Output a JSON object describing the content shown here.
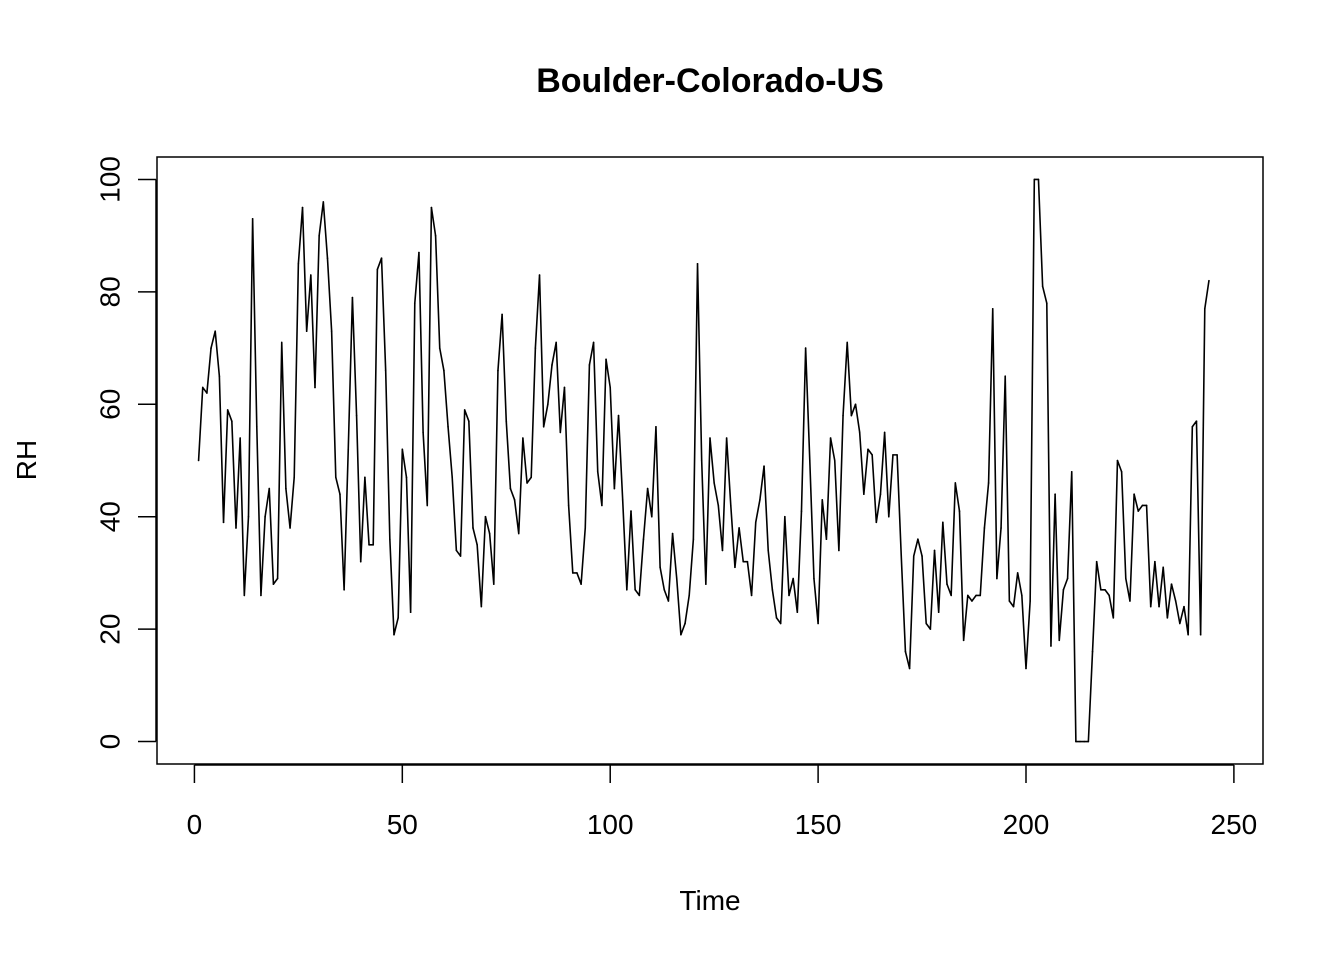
{
  "chart_data": {
    "type": "line",
    "title": "Boulder-Colorado-US",
    "xlabel": "Time",
    "ylabel": "RH",
    "xlim": [
      -9,
      257
    ],
    "ylim": [
      -4,
      104
    ],
    "x_ticks": [
      0,
      50,
      100,
      150,
      200,
      250
    ],
    "x_tick_labels": [
      "0",
      "50",
      "100",
      "150",
      "200",
      "250"
    ],
    "y_ticks": [
      0,
      20,
      40,
      60,
      80,
      100
    ],
    "y_tick_labels": [
      "0",
      "20",
      "40",
      "60",
      "80",
      "100"
    ],
    "grid": false,
    "line_color": "#000000",
    "series": [
      {
        "values": [
          50,
          63,
          62,
          70,
          73,
          65,
          39,
          59,
          57,
          38,
          54,
          26,
          40,
          93,
          56,
          26,
          40,
          45,
          28,
          29,
          71,
          45,
          38,
          47,
          85,
          95,
          73,
          83,
          63,
          90,
          96,
          86,
          73,
          47,
          44,
          27,
          52,
          79,
          58,
          32,
          47,
          35,
          35,
          84,
          86,
          66,
          36,
          19,
          22,
          52,
          47,
          23,
          78,
          87,
          55,
          42,
          95,
          90,
          70,
          66,
          56,
          47,
          34,
          33,
          59,
          57,
          38,
          35,
          24,
          40,
          37,
          28,
          66,
          76,
          57,
          45,
          43,
          37,
          54,
          46,
          47,
          70,
          83,
          56,
          60,
          67,
          71,
          55,
          63,
          42,
          30,
          30,
          28,
          38,
          67,
          71,
          48,
          42,
          68,
          63,
          45,
          58,
          43,
          27,
          41,
          27,
          26,
          36,
          45,
          40,
          56,
          31,
          27,
          25,
          37,
          29,
          19,
          21,
          26,
          36,
          85,
          50,
          28,
          54,
          46,
          42,
          34,
          54,
          42,
          31,
          38,
          32,
          32,
          26,
          39,
          43,
          49,
          34,
          27,
          22,
          21,
          40,
          26,
          29,
          23,
          41,
          70,
          50,
          29,
          21,
          43,
          36,
          54,
          50,
          34,
          58,
          71,
          58,
          60,
          55,
          44,
          52,
          51,
          39,
          44,
          55,
          40,
          51,
          51,
          33,
          16,
          13,
          33,
          36,
          33,
          21,
          20,
          34,
          23,
          39,
          28,
          26,
          46,
          41,
          18,
          26,
          25,
          26,
          26,
          38,
          46,
          77,
          29,
          38,
          65,
          25,
          24,
          30,
          26,
          13,
          25,
          100,
          100,
          81,
          78,
          17,
          44,
          18,
          27,
          29,
          48,
          0,
          0,
          0,
          0,
          16,
          32,
          27,
          27,
          26,
          22,
          50,
          48,
          29,
          25,
          44,
          41,
          42,
          42,
          24,
          32,
          24,
          31,
          22,
          28,
          25,
          21,
          24,
          19,
          56,
          57,
          19,
          77,
          82
        ]
      }
    ]
  }
}
